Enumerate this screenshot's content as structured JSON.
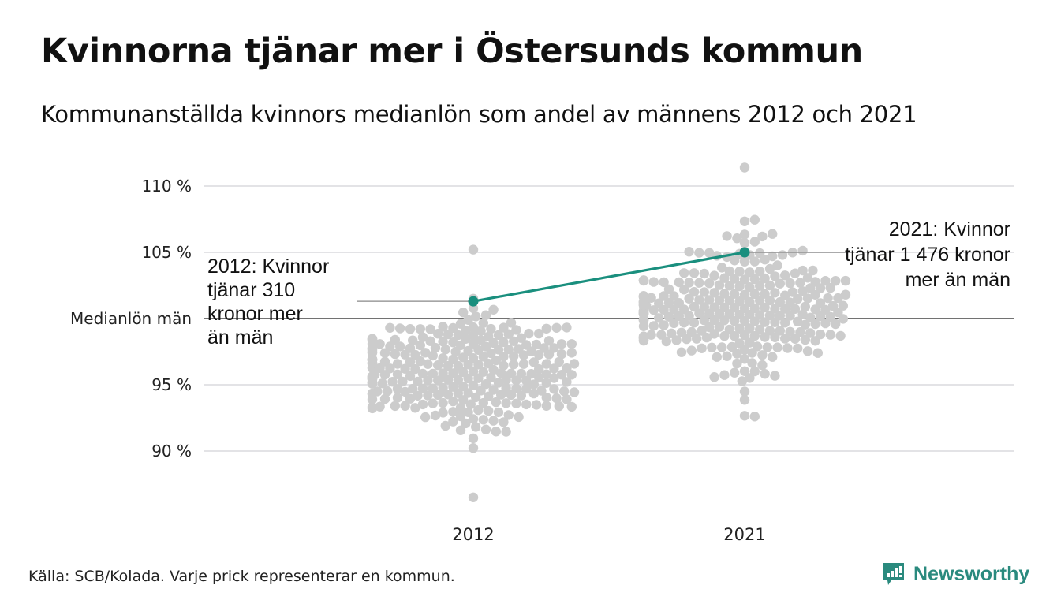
{
  "header": {
    "title": "Kvinnorna tjänar mer i Östersunds kommun",
    "subtitle": "Kommunanställda kvinnors medianlön som andel av männens 2012 och 2021"
  },
  "footer": {
    "source": "Källa: SCB/Kolada. Varje prick representerar en kommun.",
    "brand": "Newsworthy"
  },
  "colors": {
    "highlight": "#1a8f7e",
    "dots": "#cccccc",
    "gridline": "#e3e3e6",
    "reference_line": "#444444",
    "brand": "#2a8a7e"
  },
  "chart_data": {
    "type": "scatter",
    "subtype": "beeswarm",
    "title": "Kvinnorna tjänar mer i Östersunds kommun",
    "subtitle": "Kommunanställda kvinnors medianlön som andel av männens 2012 och 2021",
    "xlabel": "",
    "ylabel": "",
    "categories": [
      "2012",
      "2021"
    ],
    "ylim": [
      86,
      111.5
    ],
    "yticks": [
      {
        "value": 90,
        "label": "90 %"
      },
      {
        "value": 95,
        "label": "95 %"
      },
      {
        "value": 100,
        "label": "Medianlön män"
      },
      {
        "value": 105,
        "label": "105 %"
      },
      {
        "value": 110,
        "label": "110 %"
      }
    ],
    "grid": true,
    "reference_line": {
      "value": 100,
      "label": "Medianlön män"
    },
    "distributions": [
      {
        "category": "2012",
        "approx_count": 290,
        "median": 96.0,
        "min": 86.5,
        "max": 105.2,
        "spread": 2.2
      },
      {
        "category": "2021",
        "approx_count": 290,
        "median": 100.8,
        "min": 92.6,
        "max": 111.4,
        "spread": 2.4
      }
    ],
    "highlight_series": {
      "name": "Östersund",
      "points": [
        {
          "x": "2012",
          "y": 101.3
        },
        {
          "x": "2021",
          "y": 105.0
        }
      ]
    },
    "annotations": [
      {
        "category": "2012",
        "lines": [
          "2012: Kvinnor",
          "tjänar 310",
          "kronor mer",
          "än män"
        ]
      },
      {
        "category": "2021",
        "lines": [
          "2021: Kvinnor",
          "tjänar 1 476 kronor",
          "mer än män"
        ]
      }
    ]
  }
}
